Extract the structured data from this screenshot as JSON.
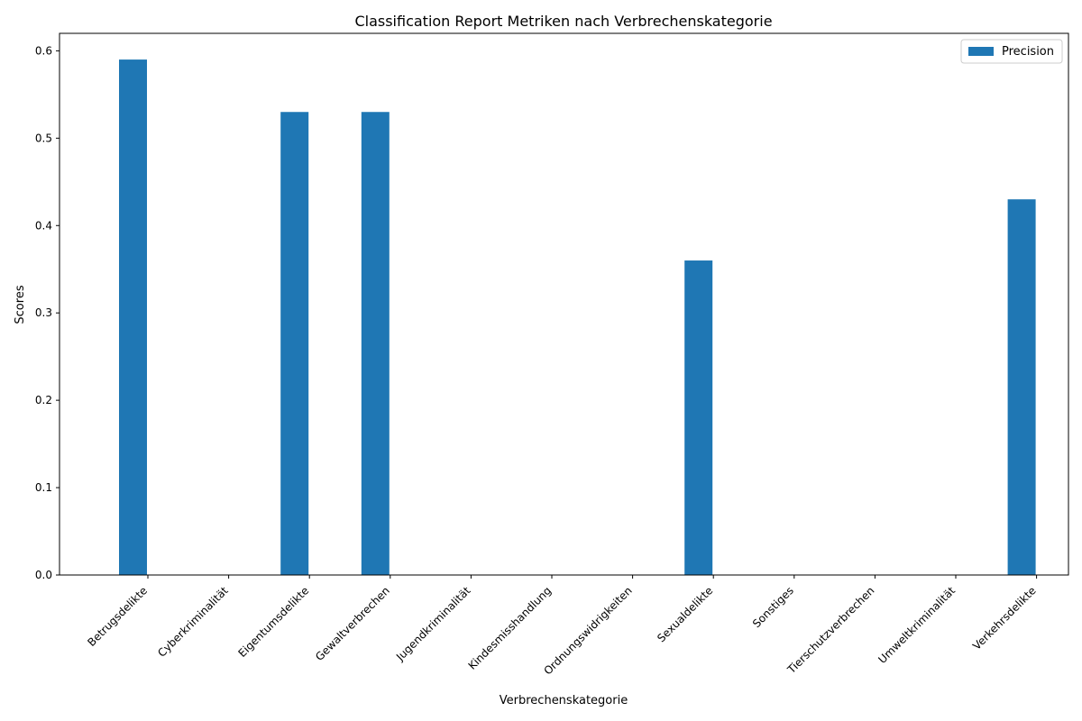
{
  "chart_data": {
    "type": "bar",
    "title": "Classification Report Metriken nach Verbrechenskategorie",
    "xlabel": "Verbrechenskategorie",
    "ylabel": "Scores",
    "categories": [
      "Betrugsdelikte",
      "Cyberkriminalität",
      "Eigentumsdelikte",
      "Gewaltverbrechen",
      "Jugendkriminalität",
      "Kindesmisshandlung",
      "Ordnungswidrigkeiten",
      "Sexualdelikte",
      "Sonstiges",
      "Tierschutzverbrechen",
      "Umweltkriminalität",
      "Verkehrsdelikte"
    ],
    "series": [
      {
        "name": "Precision",
        "color": "#1f77b4",
        "values": [
          0.59,
          0.0,
          0.53,
          0.53,
          0.0,
          0.0,
          0.0,
          0.36,
          0.0,
          0.0,
          0.0,
          0.43
        ]
      }
    ],
    "ylim": [
      0,
      0.62
    ],
    "yticks": [
      0.0,
      0.1,
      0.2,
      0.3,
      0.4,
      0.5,
      0.6
    ],
    "ytick_labels": [
      "0.0",
      "0.1",
      "0.2",
      "0.3",
      "0.4",
      "0.5",
      "0.6"
    ],
    "grid": false,
    "legend_position": "top-right"
  }
}
